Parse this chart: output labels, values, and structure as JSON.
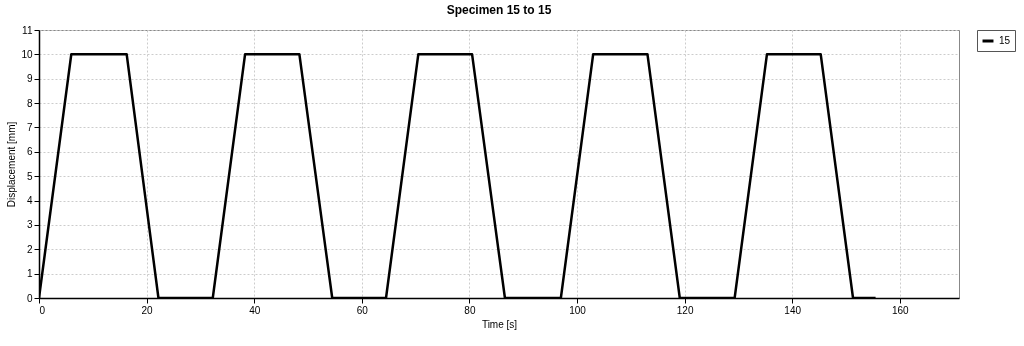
{
  "chart_data": {
    "type": "line",
    "title": "Specimen 15 to 15",
    "xlabel": "Time [s]",
    "ylabel": "Displacement [mm]",
    "x": [
      0,
      6,
      16.3,
      22.2,
      32.3,
      38.3,
      48.4,
      54.5,
      64.5,
      70.5,
      80.5,
      86.6,
      97,
      103,
      113.1,
      119.1,
      129.3,
      135.3,
      145.3,
      151.3,
      155.5
    ],
    "series": [
      {
        "name": "15",
        "color": "#000000",
        "values": [
          0,
          10,
          10,
          0,
          0,
          10,
          10,
          0,
          0,
          10,
          10,
          0,
          0,
          10,
          10,
          0,
          0,
          10,
          10,
          0,
          0
        ]
      }
    ],
    "xlim": [
      0,
      171
    ],
    "xticks": [
      0,
      20,
      40,
      60,
      80,
      100,
      120,
      140,
      160
    ],
    "ylim": [
      0,
      11
    ],
    "yticks": [
      0,
      1,
      2,
      3,
      4,
      5,
      6,
      7,
      8,
      9,
      10,
      11
    ],
    "grid": true,
    "legend": "top right",
    "marker": "none",
    "line_style": "solid"
  }
}
